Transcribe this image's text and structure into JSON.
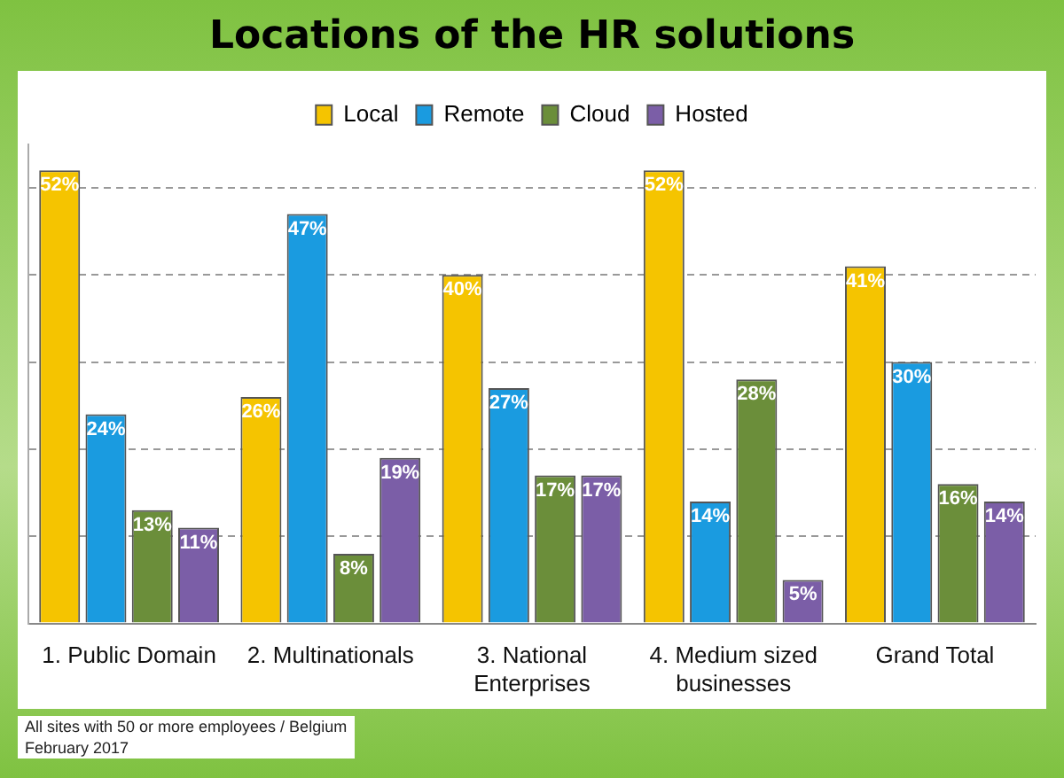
{
  "chart_data": {
    "type": "bar",
    "title": "Locations of the HR solutions",
    "categories": [
      "1. Public Domain",
      "2. Multinationals",
      "3. National Enterprises",
      "4. Medium sized businesses",
      "Grand Total"
    ],
    "series": [
      {
        "name": "Local",
        "color": "#f5c400",
        "values": [
          52,
          26,
          40,
          52,
          41
        ],
        "value_labels": [
          "52%",
          "26%",
          "40%",
          "52%",
          "41%"
        ]
      },
      {
        "name": "Remote",
        "color": "#1a9be0",
        "values": [
          24,
          47,
          27,
          14,
          30
        ],
        "value_labels": [
          "24%",
          "47%",
          "27%",
          "14%",
          "30%"
        ]
      },
      {
        "name": "Cloud",
        "color": "#6b8e3a",
        "values": [
          13,
          8,
          17,
          28,
          16
        ],
        "value_labels": [
          "13%",
          "8%",
          "17%",
          "28%",
          "16%"
        ]
      },
      {
        "name": "Hosted",
        "color": "#7b5ea7",
        "values": [
          11,
          19,
          17,
          5,
          14
        ],
        "value_labels": [
          "11%",
          "19%",
          "17%",
          "5%",
          "14%"
        ]
      }
    ],
    "ylim": [
      0,
      55
    ],
    "yticks": [
      {
        "value": 0,
        "label": null
      },
      {
        "value": 10,
        "label": null
      },
      {
        "value": 20,
        "label": null
      },
      {
        "value": 30,
        "label": null
      },
      {
        "value": 40,
        "label": null
      },
      {
        "value": 50,
        "label": null
      }
    ],
    "tick_labels": "x",
    "grid": "y",
    "legend": "top",
    "annotations": [
      "All sites with 50 or more employees / Belgium",
      "February 2017"
    ]
  }
}
